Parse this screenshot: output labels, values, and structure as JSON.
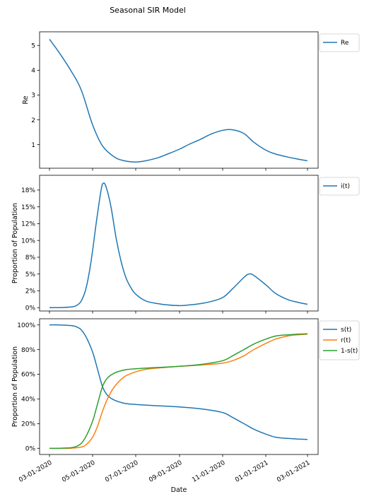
{
  "figure": {
    "title": "Seasonal SIR Model"
  },
  "x_tick_labels": [
    "03-01-2020",
    "05-01-2020",
    "07-01-2020",
    "09-01-2020",
    "11-01-2020",
    "01-01-2021",
    "03-01-2021"
  ],
  "colors": {
    "blue": "#1f77b4",
    "orange": "#ff7f0e",
    "green": "#2ca02c"
  },
  "chart_data": [
    {
      "type": "line",
      "xlabel": "",
      "ylabel": "Re",
      "ylim": [
        0.05,
        5.55
      ],
      "yticks": [
        1,
        2,
        3,
        4,
        5
      ],
      "ytick_labels": [
        "1",
        "2",
        "3",
        "4",
        "5"
      ],
      "xlim": [
        "2020-02-16",
        "2021-03-16"
      ],
      "legend": "top-right-outside",
      "series": [
        {
          "name": "Re",
          "color": "#1f77b4",
          "x": [
            "2020-03-01",
            "2020-03-15",
            "2020-04-01",
            "2020-04-15",
            "2020-05-01",
            "2020-05-15",
            "2020-06-01",
            "2020-06-15",
            "2020-07-01",
            "2020-07-15",
            "2020-08-01",
            "2020-08-15",
            "2020-09-01",
            "2020-09-15",
            "2020-10-01",
            "2020-10-15",
            "2020-11-01",
            "2020-11-15",
            "2020-12-01",
            "2020-12-15",
            "2021-01-01",
            "2021-01-15",
            "2021-02-01",
            "2021-02-15",
            "2021-03-01"
          ],
          "y": [
            5.25,
            4.7,
            3.95,
            3.2,
            1.8,
            0.95,
            0.5,
            0.35,
            0.3,
            0.35,
            0.47,
            0.62,
            0.82,
            1.02,
            1.22,
            1.42,
            1.58,
            1.6,
            1.45,
            1.1,
            0.78,
            0.62,
            0.5,
            0.42,
            0.35
          ]
        }
      ]
    },
    {
      "type": "line",
      "xlabel": "",
      "ylabel": "Proportion of Population",
      "ylim": [
        -0.005,
        0.197
      ],
      "yticks": [
        0,
        0.025,
        0.05,
        0.075,
        0.1,
        0.125,
        0.15,
        0.175
      ],
      "ytick_labels": [
        "0%",
        "2%",
        "5%",
        "8%",
        "10%",
        "12%",
        "15%",
        "18%"
      ],
      "xlim": [
        "2020-02-16",
        "2021-03-16"
      ],
      "legend": "top-right-outside",
      "series": [
        {
          "name": "i(t)",
          "color": "#1f77b4",
          "x": [
            "2020-03-01",
            "2020-03-15",
            "2020-04-01",
            "2020-04-08",
            "2020-04-15",
            "2020-04-22",
            "2020-04-29",
            "2020-05-06",
            "2020-05-13",
            "2020-05-16",
            "2020-05-20",
            "2020-05-27",
            "2020-06-03",
            "2020-06-10",
            "2020-06-17",
            "2020-06-24",
            "2020-07-01",
            "2020-07-15",
            "2020-08-01",
            "2020-08-15",
            "2020-09-01",
            "2020-09-15",
            "2020-10-01",
            "2020-10-15",
            "2020-11-01",
            "2020-11-15",
            "2020-12-01",
            "2020-12-08",
            "2020-12-15",
            "2021-01-01",
            "2021-01-15",
            "2021-02-01",
            "2021-02-15",
            "2021-03-01"
          ],
          "y": [
            0.0,
            0.0,
            0.001,
            0.003,
            0.01,
            0.03,
            0.07,
            0.125,
            0.175,
            0.185,
            0.18,
            0.15,
            0.105,
            0.07,
            0.045,
            0.03,
            0.02,
            0.01,
            0.006,
            0.004,
            0.003,
            0.004,
            0.006,
            0.009,
            0.015,
            0.028,
            0.045,
            0.05,
            0.048,
            0.034,
            0.021,
            0.012,
            0.008,
            0.005
          ]
        }
      ]
    },
    {
      "type": "line",
      "xlabel": "Date",
      "ylabel": "Proportion of Population",
      "ylim": [
        -0.05,
        1.05
      ],
      "yticks": [
        0,
        0.2,
        0.4,
        0.6,
        0.8,
        1.0
      ],
      "ytick_labels": [
        "0%",
        "20%",
        "40%",
        "60%",
        "80%",
        "100%"
      ],
      "xlim": [
        "2020-02-16",
        "2021-03-16"
      ],
      "legend": "top-right-outside",
      "series": [
        {
          "name": "s(t)",
          "color": "#1f77b4",
          "x": [
            "2020-03-01",
            "2020-03-15",
            "2020-04-01",
            "2020-04-08",
            "2020-04-15",
            "2020-04-22",
            "2020-05-01",
            "2020-05-08",
            "2020-05-15",
            "2020-05-22",
            "2020-06-01",
            "2020-06-15",
            "2020-07-01",
            "2020-08-01",
            "2020-09-01",
            "2020-10-01",
            "2020-11-01",
            "2020-11-15",
            "2020-12-01",
            "2020-12-15",
            "2021-01-01",
            "2021-01-15",
            "2021-02-01",
            "2021-02-15",
            "2021-03-01"
          ],
          "y": [
            1.0,
            1.0,
            0.995,
            0.985,
            0.96,
            0.9,
            0.78,
            0.64,
            0.5,
            0.43,
            0.39,
            0.365,
            0.355,
            0.345,
            0.335,
            0.32,
            0.29,
            0.25,
            0.2,
            0.155,
            0.115,
            0.09,
            0.08,
            0.075,
            0.072
          ]
        },
        {
          "name": "r(t)",
          "color": "#ff7f0e",
          "x": [
            "2020-03-01",
            "2020-03-15",
            "2020-04-01",
            "2020-04-15",
            "2020-04-22",
            "2020-05-01",
            "2020-05-08",
            "2020-05-15",
            "2020-05-22",
            "2020-06-01",
            "2020-06-15",
            "2020-07-01",
            "2020-07-15",
            "2020-08-01",
            "2020-09-01",
            "2020-10-01",
            "2020-11-01",
            "2020-11-15",
            "2020-12-01",
            "2020-12-15",
            "2021-01-01",
            "2021-01-15",
            "2021-02-01",
            "2021-02-15",
            "2021-03-01"
          ],
          "y": [
            0.0,
            0.0,
            0.001,
            0.01,
            0.03,
            0.09,
            0.18,
            0.3,
            0.4,
            0.5,
            0.58,
            0.62,
            0.64,
            0.65,
            0.665,
            0.675,
            0.69,
            0.71,
            0.75,
            0.8,
            0.85,
            0.885,
            0.91,
            0.92,
            0.925
          ]
        },
        {
          "name": "1-s(t)",
          "color": "#2ca02c",
          "x": [
            "2020-03-01",
            "2020-03-15",
            "2020-04-01",
            "2020-04-08",
            "2020-04-15",
            "2020-04-22",
            "2020-05-01",
            "2020-05-08",
            "2020-05-15",
            "2020-05-22",
            "2020-06-01",
            "2020-06-15",
            "2020-07-01",
            "2020-08-01",
            "2020-09-01",
            "2020-10-01",
            "2020-11-01",
            "2020-11-15",
            "2020-12-01",
            "2020-12-15",
            "2021-01-01",
            "2021-01-15",
            "2021-02-01",
            "2021-02-15",
            "2021-03-01"
          ],
          "y": [
            0.0,
            0.0,
            0.005,
            0.015,
            0.04,
            0.1,
            0.22,
            0.36,
            0.5,
            0.57,
            0.61,
            0.635,
            0.645,
            0.655,
            0.665,
            0.68,
            0.71,
            0.75,
            0.8,
            0.845,
            0.885,
            0.91,
            0.92,
            0.925,
            0.928
          ]
        }
      ]
    }
  ]
}
